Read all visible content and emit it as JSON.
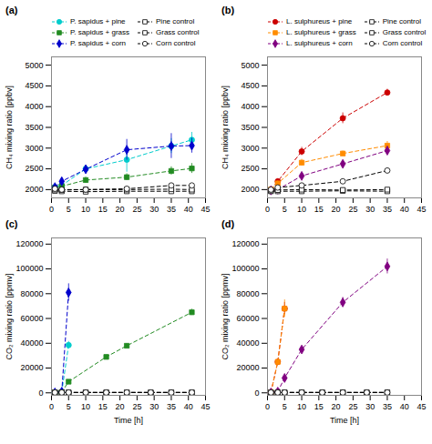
{
  "chart_data": [
    {
      "type": "line",
      "title": "(a)",
      "ylabel": "CH₄ mixing ratio [ppbv]",
      "xlim": [
        0,
        45
      ],
      "xticks": [
        0,
        5,
        10,
        15,
        20,
        25,
        30,
        35,
        40,
        45
      ],
      "ylim": [
        1800,
        5200
      ],
      "yticks": [
        2000,
        2500,
        3000,
        3500,
        4000,
        4500,
        5000
      ],
      "line_style": "dashed",
      "legend": "upper left",
      "series": [
        {
          "name": "P. sapidus + pine",
          "color": "#00CCCC",
          "marker": "circle",
          "x": [
            1,
            3,
            10,
            22,
            35,
            41
          ],
          "values": [
            2060,
            2100,
            2500,
            2720,
            3050,
            3200
          ],
          "yerr": [
            40,
            60,
            80,
            300,
            180,
            180
          ]
        },
        {
          "name": "P. sapidus + grass",
          "color": "#228B22",
          "marker": "square",
          "x": [
            1,
            3,
            10,
            22,
            35,
            41
          ],
          "values": [
            2050,
            2080,
            2230,
            2300,
            2450,
            2510
          ],
          "yerr": [
            40,
            60,
            70,
            80,
            100,
            120
          ]
        },
        {
          "name": "P. sapidus + corn",
          "color": "#0000CC",
          "marker": "diamond",
          "x": [
            1,
            3,
            10,
            22,
            35,
            41
          ],
          "values": [
            2060,
            2200,
            2490,
            2960,
            3050,
            3060
          ],
          "yerr": [
            40,
            80,
            100,
            250,
            300,
            180
          ]
        },
        {
          "name": "Pine control",
          "color": "#000000",
          "marker": "open_square",
          "x": [
            1,
            3,
            10,
            22,
            35,
            41
          ],
          "values": [
            1970,
            1960,
            1950,
            1960,
            1960,
            1960
          ],
          "yerr": [
            20,
            20,
            20,
            20,
            20,
            20
          ]
        },
        {
          "name": "Grass control",
          "color": "#000000",
          "marker": "open_square",
          "x": [
            1,
            3,
            10,
            22,
            35,
            41
          ],
          "values": [
            2000,
            1990,
            2000,
            2000,
            2010,
            2000
          ],
          "yerr": [
            20,
            20,
            20,
            20,
            20,
            20
          ]
        },
        {
          "name": "Corn control",
          "color": "#000000",
          "marker": "open_circle",
          "x": [
            1,
            3,
            10,
            22,
            35,
            41
          ],
          "values": [
            2020,
            2000,
            2000,
            2020,
            2100,
            2100
          ],
          "yerr": [
            20,
            20,
            20,
            20,
            20,
            20
          ]
        }
      ]
    },
    {
      "type": "line",
      "title": "(b)",
      "ylabel": "CH₄ mixing ratio [ppbv]",
      "xlim": [
        0,
        45
      ],
      "xticks": [
        0,
        5,
        10,
        15,
        20,
        25,
        30,
        35,
        40,
        45
      ],
      "ylim": [
        1800,
        5200
      ],
      "yticks": [
        2000,
        2500,
        3000,
        3500,
        4000,
        4500,
        5000
      ],
      "line_style": "dashed",
      "legend": "upper left",
      "series": [
        {
          "name": "L. sulphureus + pine",
          "color": "#CC0000",
          "marker": "circle",
          "x": [
            1,
            3,
            10,
            22,
            35
          ],
          "values": [
            2000,
            2200,
            2920,
            3720,
            4340
          ],
          "yerr": [
            40,
            60,
            100,
            130,
            80
          ]
        },
        {
          "name": "L. sulphureus + grass",
          "color": "#FF8C00",
          "marker": "square",
          "x": [
            1,
            3,
            10,
            22,
            35
          ],
          "values": [
            2000,
            2150,
            2650,
            2870,
            3060
          ],
          "yerr": [
            40,
            60,
            80,
            60,
            100
          ]
        },
        {
          "name": "L. sulphureus + corn",
          "color": "#800080",
          "marker": "diamond",
          "x": [
            1,
            3,
            10,
            22,
            35
          ],
          "values": [
            1980,
            2000,
            2330,
            2620,
            2940
          ],
          "yerr": [
            40,
            60,
            70,
            70,
            100
          ]
        },
        {
          "name": "Pine control",
          "color": "#000000",
          "marker": "open_square",
          "x": [
            1,
            3,
            10,
            22,
            35
          ],
          "values": [
            1960,
            1960,
            1960,
            1970,
            1960
          ],
          "yerr": [
            20,
            20,
            20,
            20,
            20
          ]
        },
        {
          "name": "Grass control",
          "color": "#000000",
          "marker": "open_square",
          "x": [
            1,
            3,
            10,
            22,
            35
          ],
          "values": [
            1980,
            1990,
            2000,
            1990,
            2000
          ],
          "yerr": [
            20,
            20,
            20,
            20,
            20
          ]
        },
        {
          "name": "Corn control",
          "color": "#000000",
          "marker": "open_circle",
          "x": [
            1,
            3,
            10,
            22,
            35
          ],
          "values": [
            2000,
            2050,
            2100,
            2200,
            2460
          ],
          "yerr": [
            20,
            20,
            20,
            20,
            20
          ]
        }
      ]
    },
    {
      "type": "line",
      "title": "(c)",
      "xlabel": "Time [h]",
      "ylabel": "CO₂ mixing ratio [ppmv]",
      "xlim": [
        0,
        45
      ],
      "xticks": [
        0,
        5,
        10,
        15,
        20,
        25,
        30,
        35,
        40,
        45
      ],
      "ylim": [
        -2000,
        125000
      ],
      "yticks": [
        0,
        20000,
        40000,
        60000,
        80000,
        100000,
        120000
      ],
      "line_style": "dashed",
      "series": [
        {
          "name": "P. sapidus + pine",
          "color": "#00CCCC",
          "marker": "circle",
          "x": [
            1,
            3,
            5
          ],
          "values": [
            300,
            600,
            38500
          ],
          "yerr": [
            100,
            200,
            3000
          ]
        },
        {
          "name": "P. sapidus + grass",
          "color": "#228B22",
          "marker": "square",
          "x": [
            1,
            3,
            5,
            16,
            22,
            41
          ],
          "values": [
            300,
            600,
            9000,
            29000,
            38000,
            65000
          ],
          "yerr": [
            100,
            200,
            800,
            1500,
            1500,
            2500
          ]
        },
        {
          "name": "P. sapidus + corn",
          "color": "#0000CC",
          "marker": "diamond",
          "x": [
            1,
            3,
            5
          ],
          "values": [
            300,
            1000,
            81000
          ],
          "yerr": [
            100,
            200,
            7000
          ]
        },
        {
          "name": "Pine control",
          "color": "#000000",
          "marker": "open_square",
          "x": [
            1,
            3,
            5,
            10,
            16,
            22,
            29,
            35,
            41
          ],
          "values": [
            300,
            300,
            300,
            300,
            300,
            300,
            300,
            300,
            300
          ],
          "yerr": [
            80,
            80,
            80,
            80,
            80,
            80,
            80,
            80,
            80
          ]
        },
        {
          "name": "Grass control",
          "color": "#000000",
          "marker": "open_square",
          "x": [
            1,
            3,
            5,
            10,
            16,
            22,
            29,
            35,
            41
          ],
          "values": [
            300,
            300,
            300,
            300,
            300,
            300,
            300,
            300,
            300
          ],
          "yerr": [
            80,
            80,
            80,
            80,
            80,
            80,
            80,
            80,
            80
          ]
        },
        {
          "name": "Corn control",
          "color": "#000000",
          "marker": "open_circle",
          "x": [
            1,
            3,
            5,
            10,
            16,
            22,
            29,
            35,
            41
          ],
          "values": [
            300,
            300,
            300,
            300,
            300,
            300,
            300,
            300,
            300
          ],
          "yerr": [
            80,
            80,
            80,
            80,
            80,
            80,
            80,
            80,
            80
          ]
        }
      ]
    },
    {
      "type": "line",
      "title": "(d)",
      "xlabel": "Time [h]",
      "ylabel": "CO₂ mixing ratio [ppmv]",
      "xlim": [
        0,
        45
      ],
      "xticks": [
        0,
        5,
        10,
        15,
        20,
        25,
        30,
        35,
        40,
        45
      ],
      "ylim": [
        -2000,
        125000
      ],
      "yticks": [
        0,
        20000,
        40000,
        60000,
        80000,
        100000,
        120000
      ],
      "line_style": "dashed",
      "series": [
        {
          "name": "L. sulphureus + pine",
          "color": "#CC0000",
          "marker": "circle",
          "x": [
            1,
            3,
            5,
            22,
            35
          ],
          "values": [
            300,
            25000,
            68000,
            null,
            null
          ],
          "yerr": [
            100,
            1500,
            5000,
            null,
            null
          ]
        },
        {
          "name": "L. sulphureus + grass",
          "color": "#FF8C00",
          "marker": "square",
          "x": [
            1,
            3,
            5,
            22,
            35
          ],
          "values": [
            300,
            25000,
            68000,
            null,
            null
          ],
          "yerr": [
            100,
            1500,
            7000,
            null,
            null
          ]
        },
        {
          "name": "L. sulphureus + corn",
          "color": "#800080",
          "marker": "diamond",
          "x": [
            1,
            3,
            5,
            10,
            22,
            35
          ],
          "values": [
            300,
            1000,
            12000,
            35000,
            73000,
            102000
          ],
          "yerr": [
            100,
            200,
            1000,
            2000,
            4000,
            6000
          ]
        },
        {
          "name": "Pine control",
          "color": "#000000",
          "marker": "open_square",
          "x": [
            1,
            3,
            5,
            10,
            16,
            22,
            29,
            35
          ],
          "values": [
            300,
            300,
            300,
            300,
            300,
            300,
            300,
            300
          ],
          "yerr": [
            80,
            80,
            80,
            80,
            80,
            80,
            80,
            80
          ]
        },
        {
          "name": "Grass control",
          "color": "#000000",
          "marker": "open_square",
          "x": [
            1,
            3,
            5,
            10,
            16,
            22,
            29,
            35
          ],
          "values": [
            300,
            300,
            300,
            300,
            300,
            300,
            300,
            300
          ],
          "yerr": [
            80,
            80,
            80,
            80,
            80,
            80,
            80,
            80
          ]
        },
        {
          "name": "Corn control",
          "color": "#000000",
          "marker": "open_circle",
          "x": [
            1,
            3,
            5,
            10,
            16,
            22,
            29,
            35
          ],
          "values": [
            300,
            300,
            300,
            300,
            300,
            300,
            300,
            300
          ],
          "yerr": [
            80,
            80,
            80,
            80,
            80,
            80,
            80,
            80
          ]
        }
      ]
    }
  ]
}
